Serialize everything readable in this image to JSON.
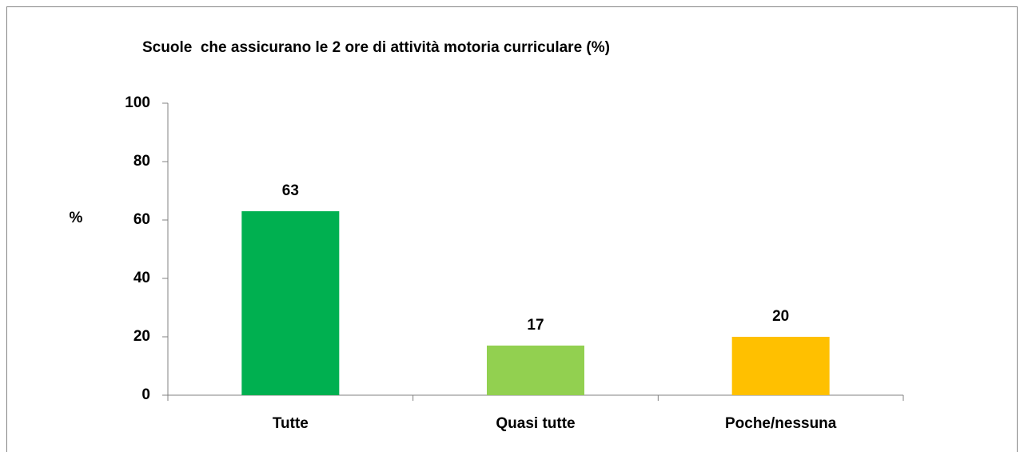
{
  "chart_data": {
    "type": "bar",
    "title": "Scuole  che assicurano le 2 ore di attività motoria curriculare (%)",
    "y_label": "%",
    "categories": [
      "Tutte",
      "Quasi tutte",
      "Poche/nessuna"
    ],
    "values": [
      63,
      17,
      20
    ],
    "colors": [
      "#00b050",
      "#92d050",
      "#ffc000"
    ],
    "ylim": [
      0,
      100
    ],
    "yticks": [
      0,
      20,
      40,
      60,
      80,
      100
    ],
    "grid": false
  }
}
